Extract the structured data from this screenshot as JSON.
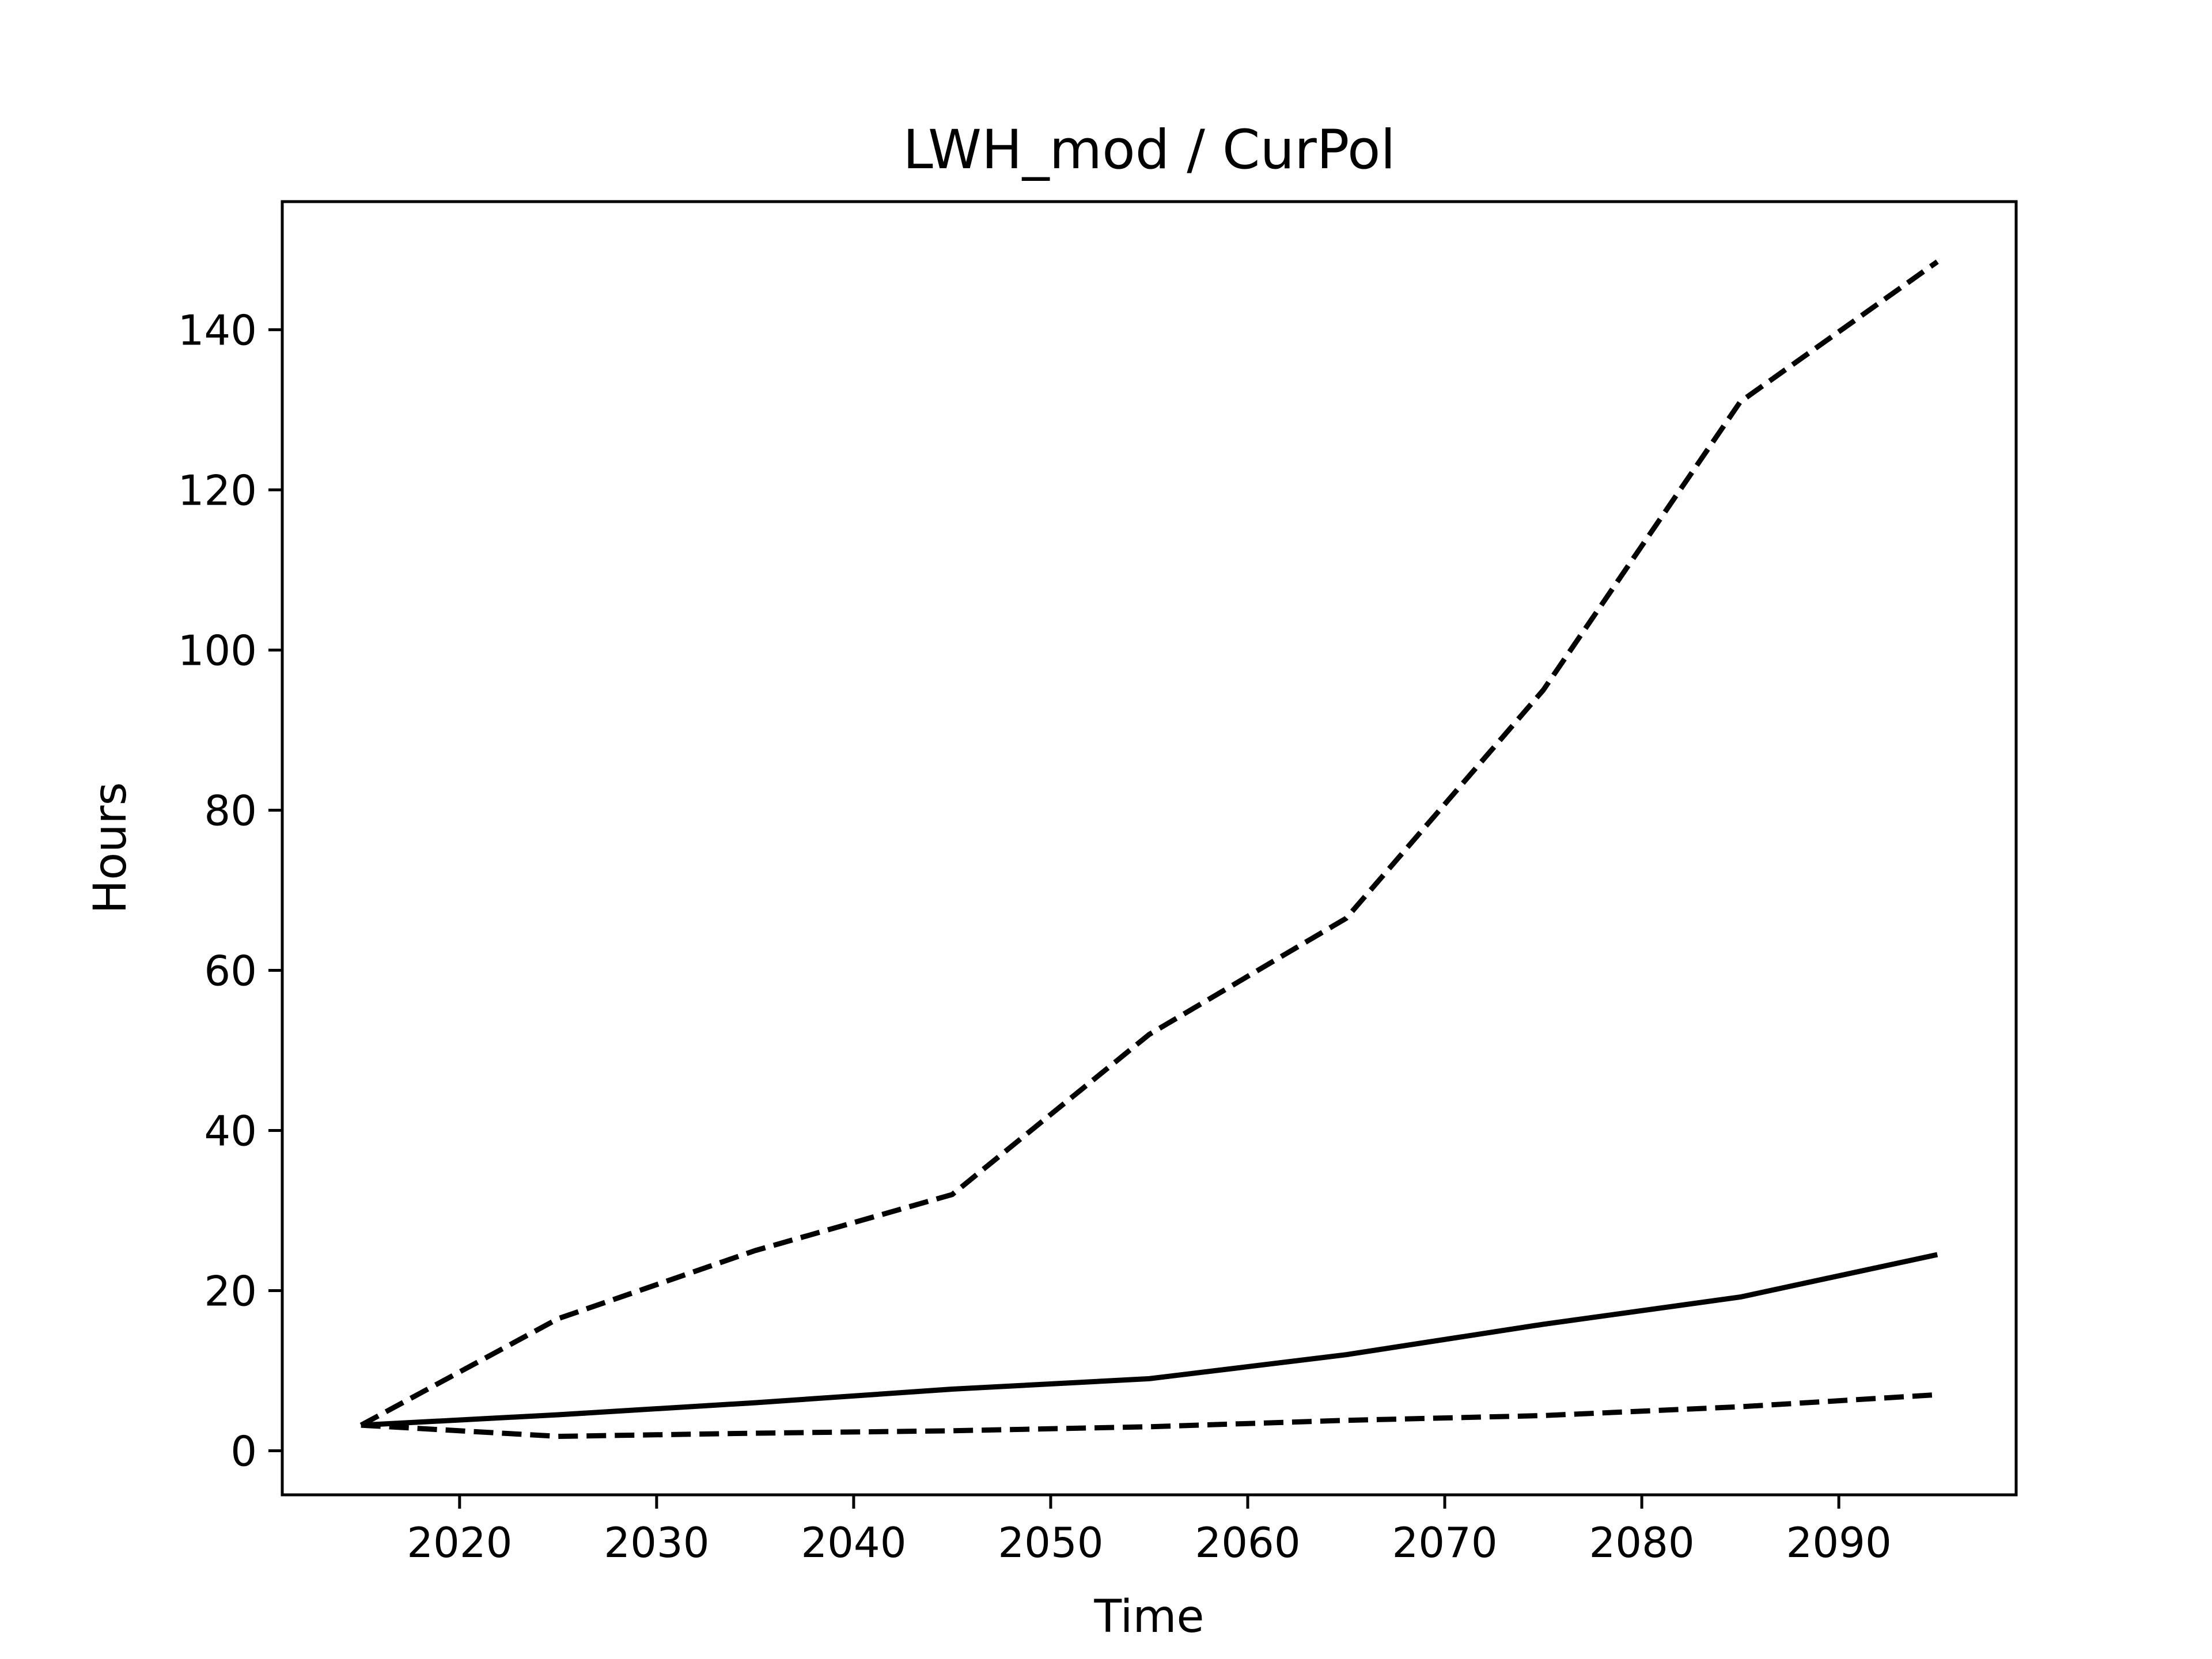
{
  "chart_data": {
    "type": "line",
    "title": "LWH_mod / CurPol",
    "xlabel": "Time",
    "ylabel": "Hours",
    "xlim": [
      2011,
      2099
    ],
    "ylim": [
      -5.5,
      156
    ],
    "xticks": [
      2020,
      2030,
      2040,
      2050,
      2060,
      2070,
      2080,
      2090
    ],
    "yticks": [
      0,
      20,
      40,
      60,
      80,
      100,
      120,
      140
    ],
    "grid": false,
    "legend": "none",
    "x": [
      2015,
      2025,
      2035,
      2045,
      2055,
      2065,
      2075,
      2085,
      2095
    ],
    "series": [
      {
        "style": "dashed",
        "color": "#000000",
        "values": [
          3.2,
          16.5,
          25,
          32,
          52,
          66.5,
          95,
          131,
          148.5
        ]
      },
      {
        "style": "solid",
        "color": "#000000",
        "values": [
          3.2,
          4.5,
          6,
          7.7,
          9,
          12,
          15.8,
          19.2,
          24.5
        ]
      },
      {
        "style": "dashed",
        "color": "#000000",
        "values": [
          3.2,
          1.8,
          2.2,
          2.5,
          3,
          3.8,
          4.4,
          5.5,
          7
        ]
      }
    ]
  }
}
